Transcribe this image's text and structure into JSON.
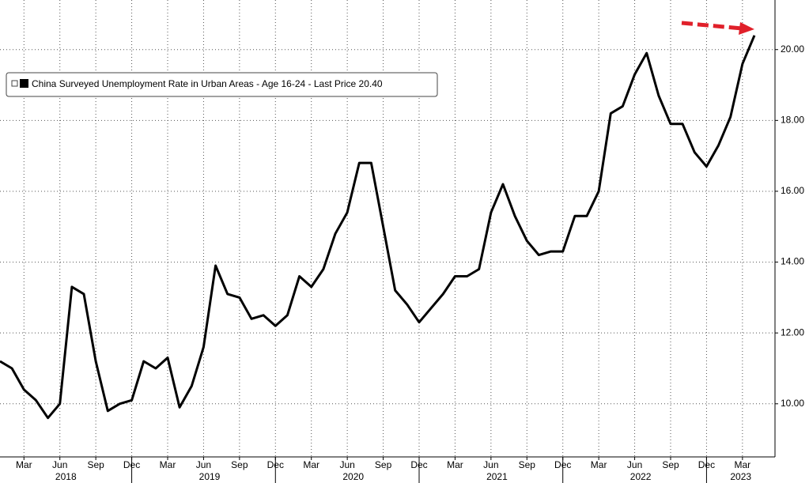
{
  "chart_data": {
    "type": "line",
    "categories": [
      null,
      null,
      "Mar",
      null,
      null,
      "Jun",
      null,
      null,
      "Sep",
      null,
      null,
      "Dec",
      null,
      null,
      "Mar",
      null,
      null,
      "Jun",
      null,
      null,
      "Sep",
      null,
      null,
      "Dec",
      null,
      null,
      "Mar",
      null,
      null,
      "Jun",
      null,
      null,
      "Sep",
      null,
      null,
      "Dec",
      null,
      null,
      "Mar",
      null,
      null,
      "Jun",
      null,
      null,
      "Sep",
      null,
      null,
      "Dec",
      null,
      null,
      "Mar",
      null,
      null,
      "Jun",
      null,
      null,
      "Sep",
      null,
      null,
      "Dec",
      null,
      null,
      "Mar",
      null
    ],
    "years": [
      "2018",
      "2019",
      "2020",
      "2021",
      "2022",
      "2023"
    ],
    "series": [
      {
        "name": "China Surveyed Unemployment Rate in Urban Areas - Age 16-24 - Last Price 20.40",
        "color": "#000000",
        "values": [
          11.2,
          11.0,
          10.4,
          10.1,
          9.6,
          10.0,
          13.3,
          13.1,
          11.2,
          9.8,
          10.0,
          10.1,
          11.2,
          11.0,
          11.3,
          9.9,
          10.5,
          11.6,
          13.9,
          13.1,
          13.0,
          12.4,
          12.5,
          12.2,
          12.5,
          13.6,
          13.3,
          13.8,
          14.8,
          15.4,
          16.8,
          16.8,
          15.0,
          13.2,
          12.8,
          12.3,
          12.7,
          13.1,
          13.6,
          13.6,
          13.8,
          15.4,
          16.2,
          15.3,
          14.6,
          14.2,
          14.3,
          14.3,
          15.3,
          15.3,
          16.0,
          18.2,
          18.4,
          19.3,
          19.9,
          18.7,
          17.9,
          17.9,
          17.1,
          16.7,
          17.3,
          18.1,
          19.6,
          20.4
        ]
      }
    ],
    "ylim": [
      8.5,
      21.4
    ],
    "yticks": [
      {
        "value": 10,
        "label": "10.00"
      },
      {
        "value": 12,
        "label": "12.00"
      },
      {
        "value": 14,
        "label": "14.00"
      },
      {
        "value": 16,
        "label": "16.00"
      },
      {
        "value": 18,
        "label": "18.00"
      },
      {
        "value": 20,
        "label": "20.00"
      }
    ],
    "grid": true
  }
}
